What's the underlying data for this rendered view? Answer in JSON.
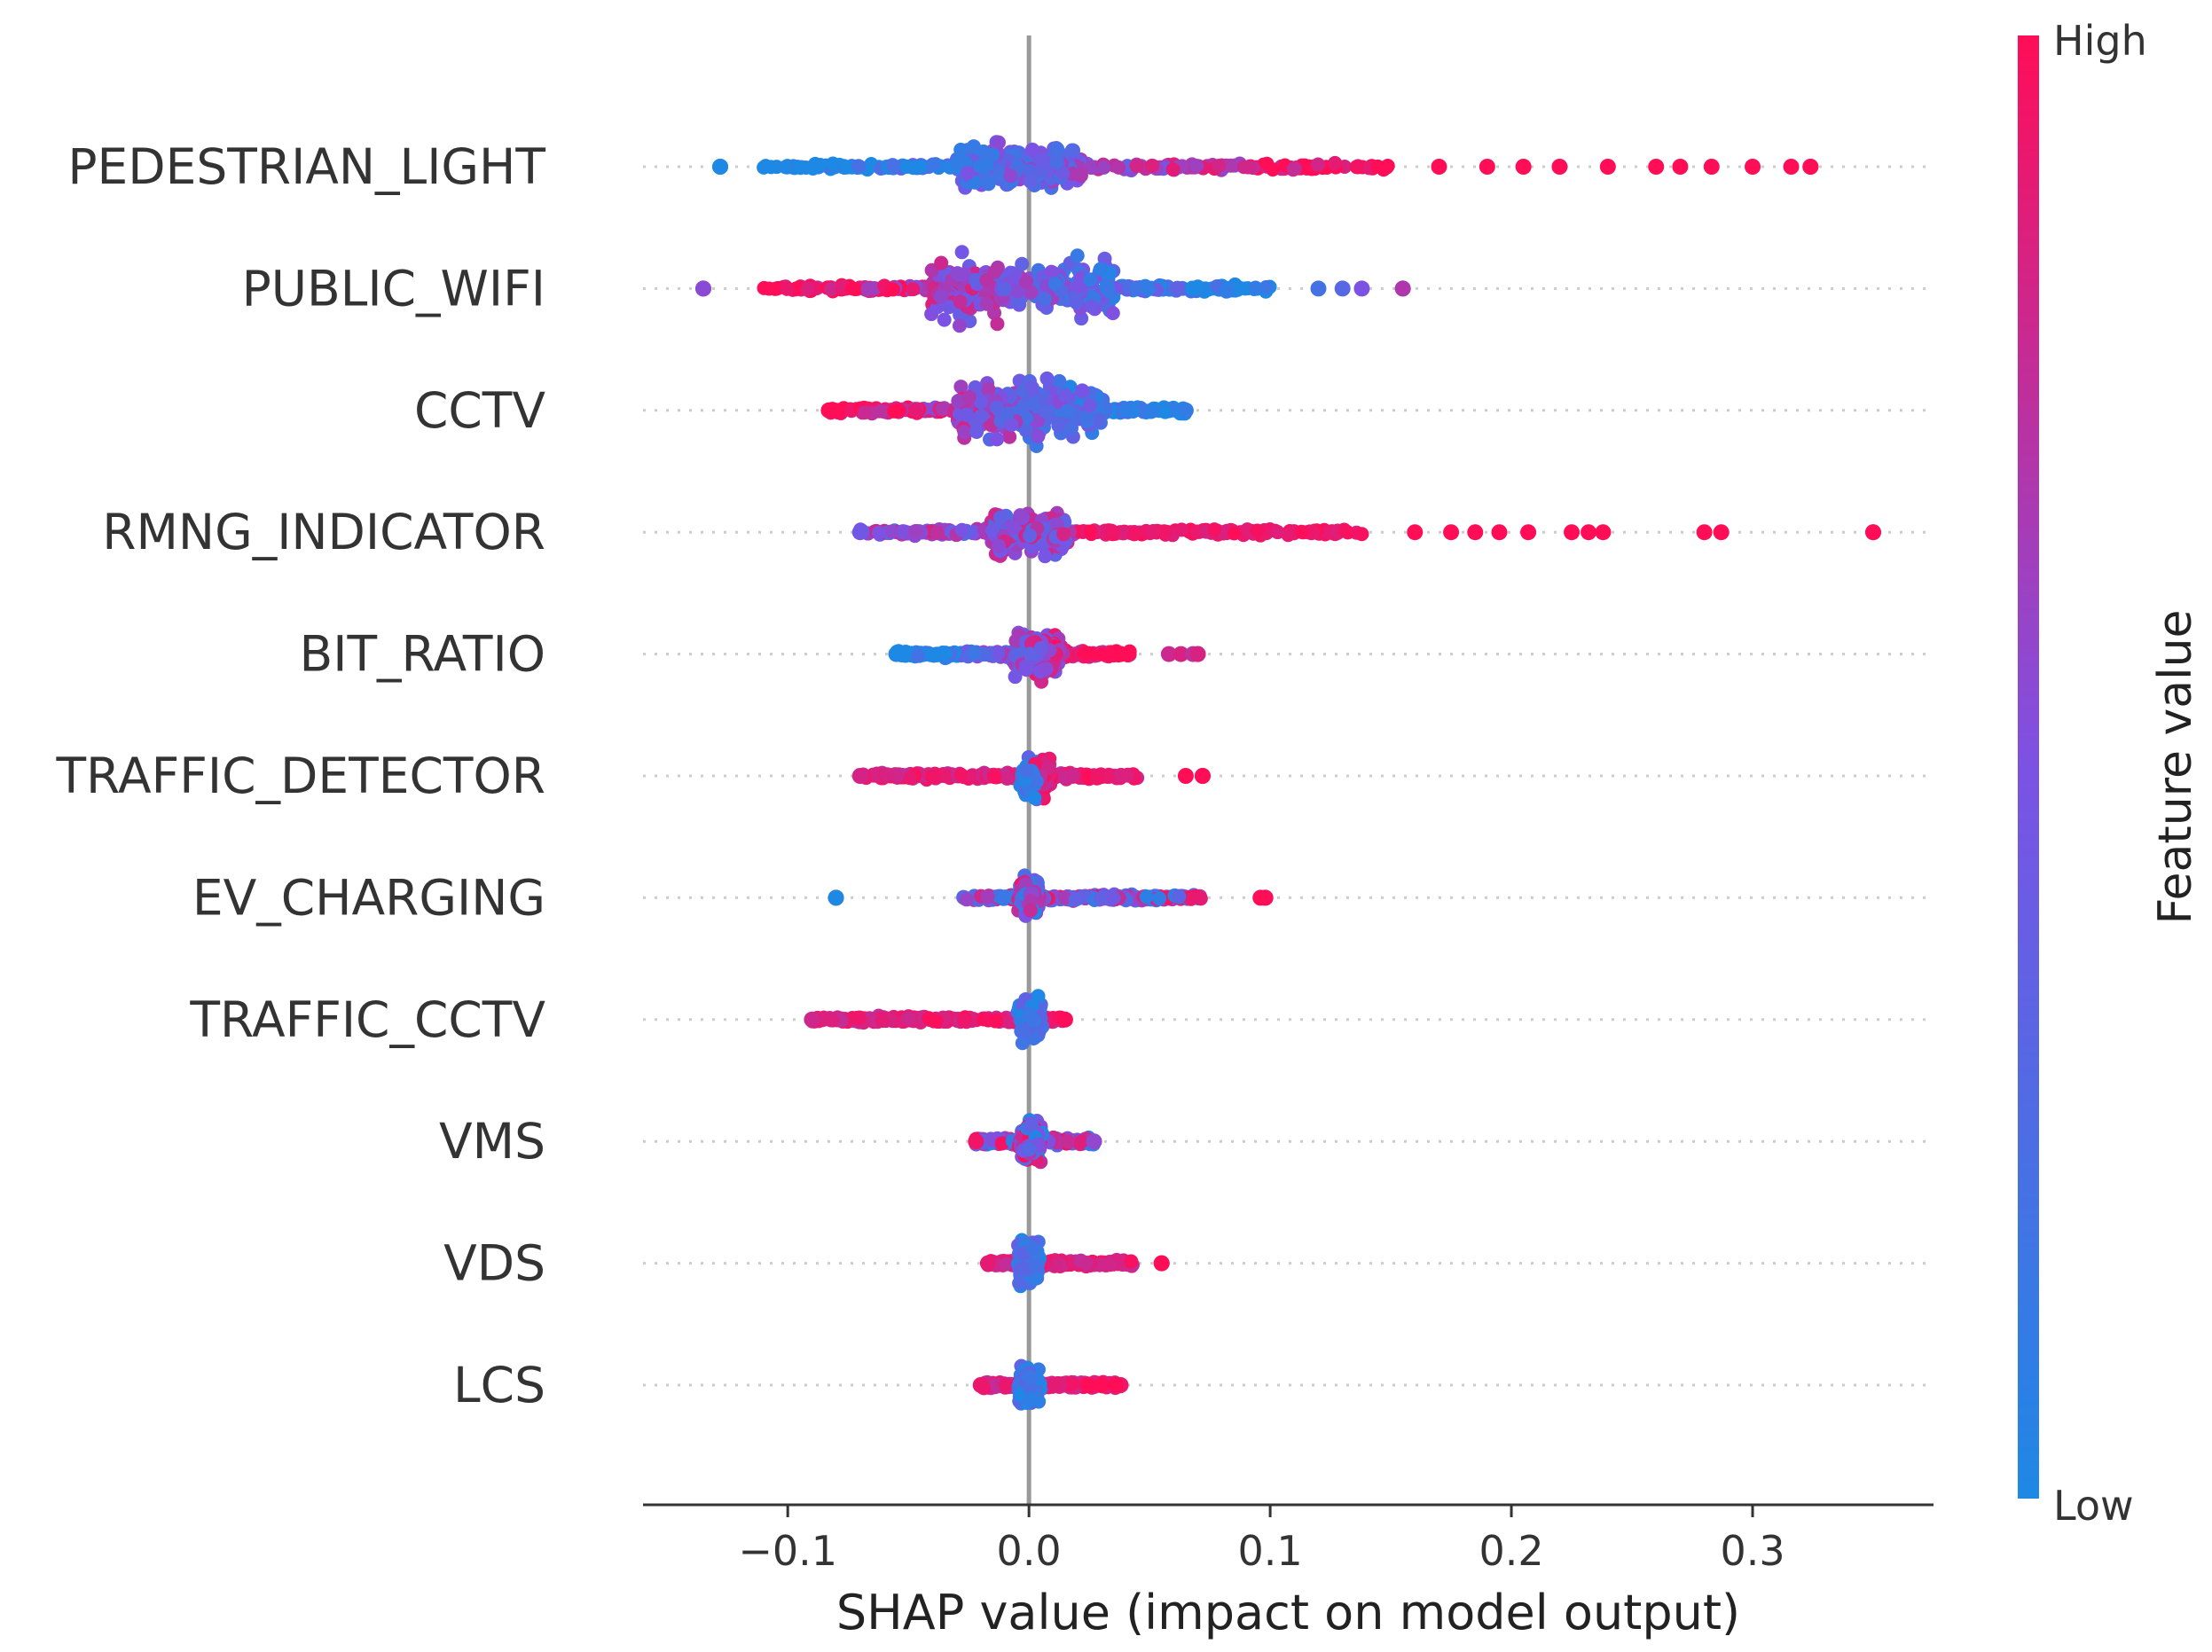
{
  "chart_data": {
    "type": "scatter",
    "subtype": "shap-beeswarm",
    "xlabel": "SHAP value (impact on model output)",
    "ylabel": "",
    "xlim": [
      -0.16,
      0.375
    ],
    "xticks": [
      -0.1,
      0.0,
      0.1,
      0.2,
      0.3
    ],
    "xtick_labels": [
      "−0.1",
      "0.0",
      "0.1",
      "0.2",
      "0.3"
    ],
    "zero_line": 0.0,
    "colorbar": {
      "title": "Feature value",
      "high_label": "High",
      "low_label": "Low",
      "low_color": "#1e88e5",
      "high_color": "#ff0d57"
    },
    "features": [
      {
        "name": "PEDESTRIAN_LIGHT",
        "min": -0.128,
        "max": 0.324,
        "core": [
          -0.03,
          0.02
        ],
        "core_width": 0.6,
        "dense_low": -0.11,
        "dense_high": 0.15,
        "low_side": "negative",
        "outliers": [
          {
            "x": -0.128,
            "v": 0.0
          },
          {
            "x": 0.17,
            "v": 1.0
          },
          {
            "x": 0.19,
            "v": 1.0
          },
          {
            "x": 0.205,
            "v": 1.0
          },
          {
            "x": 0.22,
            "v": 1.0
          },
          {
            "x": 0.24,
            "v": 1.0
          },
          {
            "x": 0.26,
            "v": 1.0
          },
          {
            "x": 0.27,
            "v": 1.0
          },
          {
            "x": 0.283,
            "v": 1.0
          },
          {
            "x": 0.3,
            "v": 1.0
          },
          {
            "x": 0.316,
            "v": 1.0
          },
          {
            "x": 0.324,
            "v": 1.0
          }
        ]
      },
      {
        "name": "PUBLIC_WIFI",
        "min": -0.135,
        "max": 0.155,
        "core": [
          -0.04,
          0.035
        ],
        "core_width": 0.75,
        "dense_low": -0.11,
        "dense_high": 0.1,
        "low_side": "positive",
        "outliers": [
          {
            "x": -0.135,
            "v": 0.55
          },
          {
            "x": 0.12,
            "v": 0.2
          },
          {
            "x": 0.13,
            "v": 0.3
          },
          {
            "x": 0.138,
            "v": 0.5
          },
          {
            "x": 0.155,
            "v": 0.7
          }
        ]
      },
      {
        "name": "CCTV",
        "min": -0.083,
        "max": 0.065,
        "core": [
          -0.03,
          0.03
        ],
        "core_width": 0.75,
        "dense_low": -0.083,
        "dense_high": 0.065,
        "low_side": "positive",
        "outliers": []
      },
      {
        "name": "RMNG_INDICATOR",
        "min": -0.07,
        "max": 0.35,
        "core": [
          -0.015,
          0.015
        ],
        "core_width": 0.55,
        "dense_low": -0.07,
        "dense_high": 0.14,
        "low_side": "negative-mixed",
        "outliers": [
          {
            "x": 0.16,
            "v": 1.0
          },
          {
            "x": 0.175,
            "v": 1.0
          },
          {
            "x": 0.185,
            "v": 1.0
          },
          {
            "x": 0.195,
            "v": 1.0
          },
          {
            "x": 0.207,
            "v": 1.0
          },
          {
            "x": 0.225,
            "v": 1.0
          },
          {
            "x": 0.232,
            "v": 1.0
          },
          {
            "x": 0.238,
            "v": 1.0
          },
          {
            "x": 0.28,
            "v": 1.0
          },
          {
            "x": 0.287,
            "v": 1.0
          },
          {
            "x": 0.35,
            "v": 1.0
          }
        ]
      },
      {
        "name": "BIT_RATIO",
        "min": -0.055,
        "max": 0.07,
        "core": [
          -0.005,
          0.012
        ],
        "core_width": 0.55,
        "dense_low": -0.055,
        "dense_high": 0.042,
        "low_side": "negative",
        "outliers": [
          {
            "x": 0.058,
            "v": 0.8
          },
          {
            "x": 0.063,
            "v": 0.85
          },
          {
            "x": 0.068,
            "v": 0.75
          },
          {
            "x": 0.07,
            "v": 0.85
          }
        ]
      },
      {
        "name": "TRAFFIC_DETECTOR",
        "min": -0.07,
        "max": 0.072,
        "core": [
          -0.002,
          0.008
        ],
        "core_width": 0.5,
        "dense_low": -0.07,
        "dense_high": 0.045,
        "low_side": "centered-low",
        "outliers": [
          {
            "x": 0.065,
            "v": 1.0
          },
          {
            "x": 0.072,
            "v": 1.0
          }
        ]
      },
      {
        "name": "EV_CHARGING",
        "min": -0.08,
        "max": 0.098,
        "core": [
          -0.003,
          0.003
        ],
        "core_width": 0.45,
        "dense_low": -0.028,
        "dense_high": 0.072,
        "low_side": "mixed",
        "outliers": [
          {
            "x": -0.08,
            "v": 0.0
          },
          {
            "x": 0.096,
            "v": 1.0
          },
          {
            "x": 0.098,
            "v": 1.0
          }
        ]
      },
      {
        "name": "TRAFFIC_CCTV",
        "min": -0.09,
        "max": 0.015,
        "core": [
          -0.003,
          0.004
        ],
        "core_width": 0.5,
        "dense_low": -0.09,
        "dense_high": 0.015,
        "low_side": "centered-low",
        "outliers": []
      },
      {
        "name": "VMS",
        "min": -0.022,
        "max": 0.027,
        "core": [
          -0.003,
          0.004
        ],
        "core_width": 0.45,
        "dense_low": -0.022,
        "dense_high": 0.027,
        "low_side": "mixed",
        "outliers": []
      },
      {
        "name": "VDS",
        "min": -0.017,
        "max": 0.055,
        "core": [
          -0.003,
          0.003
        ],
        "core_width": 0.5,
        "dense_low": -0.017,
        "dense_high": 0.043,
        "low_side": "centered-low",
        "outliers": [
          {
            "x": 0.055,
            "v": 1.0
          }
        ]
      },
      {
        "name": "LCS",
        "min": -0.02,
        "max": 0.038,
        "core": [
          -0.003,
          0.003
        ],
        "core_width": 0.45,
        "dense_low": -0.02,
        "dense_high": 0.038,
        "low_side": "centered-low",
        "outliers": [
          {
            "x": 0.025,
            "v": 1.0
          },
          {
            "x": 0.03,
            "v": 1.0
          },
          {
            "x": 0.036,
            "v": 1.0
          }
        ]
      }
    ]
  }
}
